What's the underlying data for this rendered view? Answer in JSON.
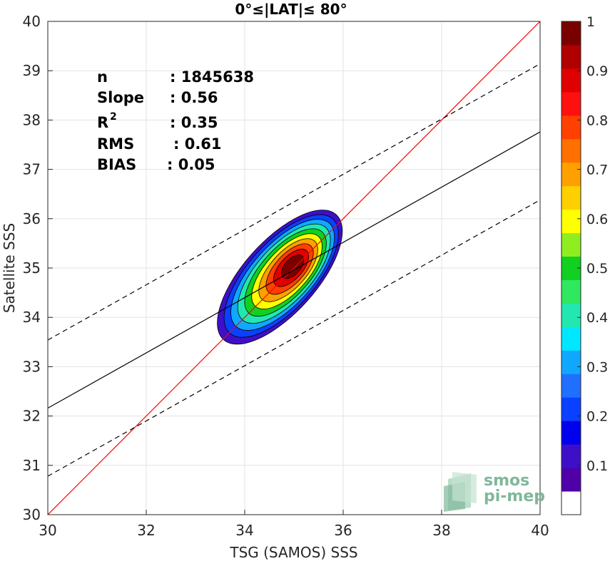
{
  "chart_data": {
    "type": "heatmap",
    "title": "0°≤|LAT|≤ 80°",
    "xlabel": "TSG (SAMOS) SSS",
    "ylabel": "Satellite SSS",
    "xlim": [
      30,
      40
    ],
    "ylim": [
      30,
      40
    ],
    "xticks": [
      "30",
      "32",
      "34",
      "36",
      "38",
      "40"
    ],
    "yticks": [
      "30",
      "31",
      "32",
      "33",
      "34",
      "35",
      "36",
      "37",
      "38",
      "39",
      "40"
    ],
    "grid": true,
    "stats": [
      {
        "label": "n",
        "value": ": 1845638"
      },
      {
        "label": "Slope",
        "value": ": 0.56"
      },
      {
        "label": "R",
        "sup": "2",
        "value": ": 0.35"
      },
      {
        "label": "RMS",
        "value": ": 0.61"
      },
      {
        "label": "BIAS",
        "value": ": 0.05"
      }
    ],
    "lines": {
      "identity": {
        "slope": 1,
        "intercept": 0,
        "color": "#ff0000"
      },
      "fit": {
        "slope": 0.56,
        "intercept": 15.36,
        "color": "#000000"
      },
      "fit_upper": {
        "slope": 0.56,
        "intercept": 16.74,
        "color": "#000000",
        "dash": true
      },
      "fit_lower": {
        "slope": 0.56,
        "intercept": 13.98,
        "color": "#000000",
        "dash": true
      }
    },
    "density_center": [
      35.0,
      35.05
    ],
    "colorbar": {
      "ticks": [
        "0.1",
        "0.2",
        "0.3",
        "0.4",
        "0.5",
        "0.6",
        "0.7",
        "0.8",
        "0.9",
        "1"
      ],
      "range": [
        0,
        1
      ],
      "colors": [
        "#ffffff",
        "#5000a8",
        "#3d10c8",
        "#0000ee",
        "#0a40ff",
        "#2070ff",
        "#10a8ff",
        "#00e8ff",
        "#22e8b0",
        "#30e860",
        "#10d020",
        "#90ee20",
        "#ffff00",
        "#ffd000",
        "#ffa000",
        "#ff7000",
        "#ff4000",
        "#ff1010",
        "#e00000",
        "#b00000",
        "#7a0000"
      ]
    },
    "contour_levels": [
      0.05,
      0.15,
      0.25,
      0.35,
      0.45,
      0.55,
      0.65,
      0.75,
      0.85,
      0.95
    ],
    "contour_colors": [
      "#3d10c8",
      "#0a40ff",
      "#10a8ff",
      "#22e8b0",
      "#10d020",
      "#ffff00",
      "#ffa000",
      "#ff4000",
      "#e00000",
      "#7a0000"
    ]
  },
  "logo": {
    "line1": "smos",
    "line2": "pi-mep"
  }
}
